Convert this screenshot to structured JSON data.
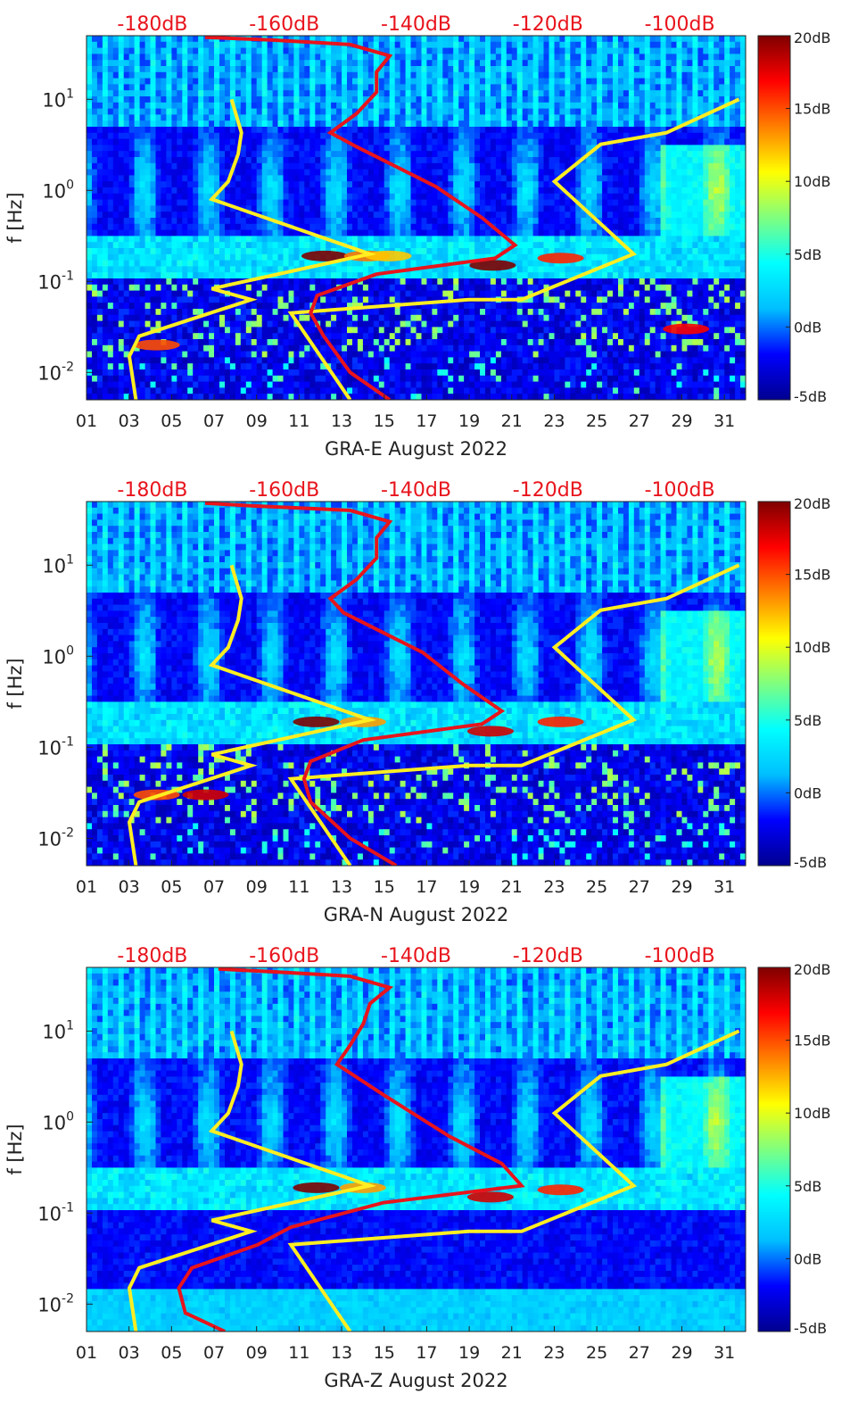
{
  "colormap": {
    "stops": [
      "#00008f",
      "#0000ff",
      "#00bfff",
      "#00ffff",
      "#7fff7f",
      "#ffff00",
      "#ff7f00",
      "#ff0000",
      "#7f0000"
    ],
    "ticks": [
      "20dB",
      "15dB",
      "10dB",
      "5dB",
      "0dB",
      "-5dB"
    ]
  },
  "colors": {
    "psd_curve": "#e8141c",
    "noise_model": "#ffee22",
    "top_axis_text": "#e8141c",
    "axis_text": "#222222"
  },
  "chart_data": [
    {
      "type": "heatmap",
      "title": "",
      "xlabel": "GRA-E August 2022",
      "ylabel": "f [Hz]",
      "xlim": [
        1,
        32
      ],
      "ylim": [
        0.005,
        50
      ],
      "yscale": "log",
      "x_ticks": [
        "01",
        "03",
        "05",
        "07",
        "09",
        "11",
        "13",
        "15",
        "17",
        "19",
        "21",
        "23",
        "25",
        "27",
        "29",
        "31"
      ],
      "y_ticks": [
        "10^-2",
        "10^-1",
        "10^0",
        "10^1"
      ],
      "top_axis_ticks": [
        "-180dB",
        "-160dB",
        "-140dB",
        "-120dB",
        "-100dB"
      ],
      "top_axis_range_db": [
        -190,
        -90
      ],
      "color_range_db": [
        -5,
        20
      ],
      "noise_models": [
        {
          "points": [
            [
              -182.5,
              0.005
            ],
            [
              -183.5,
              0.015
            ],
            [
              -182,
              0.025
            ],
            [
              -165,
              0.063
            ],
            [
              -171,
              0.083
            ],
            [
              -147,
              0.2
            ],
            [
              -171,
              0.8
            ],
            [
              -168.5,
              1.25
            ],
            [
              -167,
              2.5
            ],
            [
              -166.5,
              4.3
            ],
            [
              -168,
              10
            ]
          ]
        },
        {
          "points": [
            [
              -150,
              0.005
            ],
            [
              -159,
              0.045
            ],
            [
              -132,
              0.063
            ],
            [
              -124,
              0.063
            ],
            [
              -107,
              0.2
            ],
            [
              -119,
              1.25
            ],
            [
              -112,
              3.2
            ],
            [
              -102,
              4.3
            ],
            [
              -91,
              10
            ]
          ]
        }
      ],
      "psd_curve": {
        "points": [
          [
            -144,
            0.005
          ],
          [
            -150,
            0.01
          ],
          [
            -154,
            0.025
          ],
          [
            -156,
            0.045
          ],
          [
            -155,
            0.07
          ],
          [
            -146,
            0.12
          ],
          [
            -128,
            0.18
          ],
          [
            -125,
            0.25
          ],
          [
            -130,
            0.5
          ],
          [
            -137,
            1.1
          ],
          [
            -149,
            3
          ],
          [
            -153,
            4.3
          ],
          [
            -149,
            7
          ],
          [
            -146,
            12
          ],
          [
            -146,
            20
          ],
          [
            -144,
            30
          ],
          [
            -150,
            40
          ],
          [
            -162,
            45
          ],
          [
            -172,
            48
          ]
        ]
      },
      "hotspots": [
        {
          "day": 12.2,
          "f": 0.19,
          "level_db": 20
        },
        {
          "day": 14.2,
          "f": 0.19,
          "level_db": 14
        },
        {
          "day": 15.2,
          "f": 0.19,
          "level_db": 12
        },
        {
          "day": 20.1,
          "f": 0.15,
          "level_db": 20
        },
        {
          "day": 23.3,
          "f": 0.18,
          "level_db": 16
        },
        {
          "day": 29.2,
          "f": 0.03,
          "level_db": 17
        },
        {
          "day": 4.3,
          "f": 0.02,
          "level_db": 15
        }
      ]
    },
    {
      "type": "heatmap",
      "title": "",
      "xlabel": "GRA-N August 2022",
      "ylabel": "f [Hz]",
      "xlim": [
        1,
        32
      ],
      "ylim": [
        0.005,
        50
      ],
      "yscale": "log",
      "x_ticks": [
        "01",
        "03",
        "05",
        "07",
        "09",
        "11",
        "13",
        "15",
        "17",
        "19",
        "21",
        "23",
        "25",
        "27",
        "29",
        "31"
      ],
      "y_ticks": [
        "10^-2",
        "10^-1",
        "10^0",
        "10^1"
      ],
      "top_axis_ticks": [
        "-180dB",
        "-160dB",
        "-140dB",
        "-120dB",
        "-100dB"
      ],
      "top_axis_range_db": [
        -190,
        -90
      ],
      "color_range_db": [
        -5,
        20
      ],
      "noise_models": [
        {
          "points": [
            [
              -182.5,
              0.005
            ],
            [
              -183.5,
              0.015
            ],
            [
              -182,
              0.025
            ],
            [
              -165,
              0.063
            ],
            [
              -171,
              0.083
            ],
            [
              -147,
              0.2
            ],
            [
              -171,
              0.8
            ],
            [
              -168.5,
              1.25
            ],
            [
              -167,
              2.5
            ],
            [
              -166.5,
              4.3
            ],
            [
              -168,
              10
            ]
          ]
        },
        {
          "points": [
            [
              -150,
              0.005
            ],
            [
              -159,
              0.045
            ],
            [
              -132,
              0.063
            ],
            [
              -124,
              0.063
            ],
            [
              -107,
              0.2
            ],
            [
              -119,
              1.25
            ],
            [
              -112,
              3.2
            ],
            [
              -102,
              4.3
            ],
            [
              -91,
              10
            ]
          ]
        }
      ],
      "psd_curve": {
        "points": [
          [
            -143,
            0.005
          ],
          [
            -150,
            0.01
          ],
          [
            -156,
            0.025
          ],
          [
            -157,
            0.045
          ],
          [
            -156,
            0.07
          ],
          [
            -148,
            0.12
          ],
          [
            -130,
            0.18
          ],
          [
            -127,
            0.25
          ],
          [
            -133,
            0.5
          ],
          [
            -139,
            1.1
          ],
          [
            -151,
            3
          ],
          [
            -153,
            4.3
          ],
          [
            -149,
            7
          ],
          [
            -146,
            12
          ],
          [
            -146,
            20
          ],
          [
            -144,
            30
          ],
          [
            -150,
            40
          ],
          [
            -165,
            45
          ],
          [
            -172,
            48
          ]
        ]
      },
      "hotspots": [
        {
          "day": 11.8,
          "f": 0.19,
          "level_db": 20
        },
        {
          "day": 14.0,
          "f": 0.19,
          "level_db": 13
        },
        {
          "day": 20.0,
          "f": 0.15,
          "level_db": 18
        },
        {
          "day": 23.3,
          "f": 0.19,
          "level_db": 16
        },
        {
          "day": 6.6,
          "f": 0.03,
          "level_db": 18
        },
        {
          "day": 4.3,
          "f": 0.03,
          "level_db": 15
        }
      ]
    },
    {
      "type": "heatmap",
      "title": "",
      "xlabel": "GRA-Z August 2022",
      "ylabel": "f [Hz]",
      "xlim": [
        1,
        32
      ],
      "ylim": [
        0.005,
        50
      ],
      "yscale": "log",
      "x_ticks": [
        "01",
        "03",
        "05",
        "07",
        "09",
        "11",
        "13",
        "15",
        "17",
        "19",
        "21",
        "23",
        "25",
        "27",
        "29",
        "31"
      ],
      "y_ticks": [
        "10^-2",
        "10^-1",
        "10^0",
        "10^1"
      ],
      "top_axis_ticks": [
        "-180dB",
        "-160dB",
        "-140dB",
        "-120dB",
        "-100dB"
      ],
      "top_axis_range_db": [
        -190,
        -90
      ],
      "color_range_db": [
        -5,
        20
      ],
      "noise_models": [
        {
          "points": [
            [
              -182.5,
              0.005
            ],
            [
              -183.5,
              0.015
            ],
            [
              -182,
              0.025
            ],
            [
              -165,
              0.063
            ],
            [
              -171,
              0.083
            ],
            [
              -147,
              0.2
            ],
            [
              -171,
              0.8
            ],
            [
              -168.5,
              1.25
            ],
            [
              -167,
              2.5
            ],
            [
              -166.5,
              4.3
            ],
            [
              -168,
              10
            ]
          ]
        },
        {
          "points": [
            [
              -150,
              0.005
            ],
            [
              -159,
              0.045
            ],
            [
              -132,
              0.063
            ],
            [
              -124,
              0.063
            ],
            [
              -107,
              0.2
            ],
            [
              -119,
              1.25
            ],
            [
              -112,
              3.2
            ],
            [
              -102,
              4.3
            ],
            [
              -91,
              10
            ]
          ]
        }
      ],
      "psd_curve": {
        "points": [
          [
            -169,
            0.005
          ],
          [
            -175,
            0.008
          ],
          [
            -176,
            0.015
          ],
          [
            -174,
            0.025
          ],
          [
            -164,
            0.045
          ],
          [
            -159,
            0.07
          ],
          [
            -145,
            0.13
          ],
          [
            -124,
            0.2
          ],
          [
            -127,
            0.35
          ],
          [
            -135,
            0.7
          ],
          [
            -145,
            2
          ],
          [
            -152,
            4.3
          ],
          [
            -150,
            7
          ],
          [
            -148,
            12
          ],
          [
            -147,
            20
          ],
          [
            -144,
            30
          ],
          [
            -150,
            40
          ],
          [
            -162,
            45
          ],
          [
            -170,
            48
          ]
        ]
      },
      "hotspots": [
        {
          "day": 11.8,
          "f": 0.19,
          "level_db": 20
        },
        {
          "day": 14.0,
          "f": 0.19,
          "level_db": 13
        },
        {
          "day": 20.0,
          "f": 0.15,
          "level_db": 18
        },
        {
          "day": 23.3,
          "f": 0.18,
          "level_db": 16
        }
      ]
    }
  ]
}
